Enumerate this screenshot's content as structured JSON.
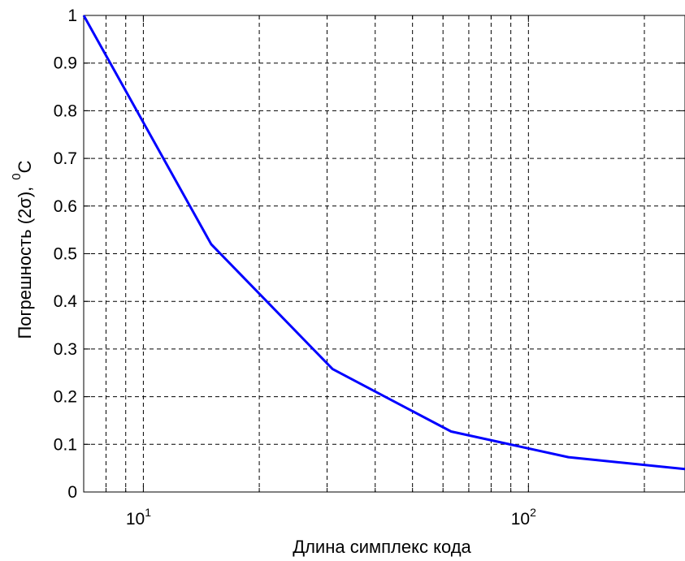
{
  "chart_data": {
    "type": "line",
    "title": "",
    "xlabel": "Длина симплекс кода",
    "ylabel": {
      "main": "Погрешность (2σ),",
      "unit_sup": "0",
      "unit": "C"
    },
    "xscale": "log",
    "xlim": [
      7,
      255
    ],
    "ylim": [
      0,
      1
    ],
    "grid": true,
    "grid_style": "dashed",
    "x_ticks": [
      {
        "value": 10,
        "base": "10",
        "exp": "1"
      },
      {
        "value": 100,
        "base": "10",
        "exp": "2"
      }
    ],
    "y_ticks": [
      "0",
      "0.1",
      "0.2",
      "0.3",
      "0.4",
      "0.5",
      "0.6",
      "0.7",
      "0.8",
      "0.9",
      "1"
    ],
    "series": [
      {
        "color": "#0000ff",
        "x": [
          7,
          15,
          31,
          63,
          127,
          255
        ],
        "y": [
          1.0,
          0.52,
          0.258,
          0.127,
          0.073,
          0.048
        ]
      }
    ]
  }
}
